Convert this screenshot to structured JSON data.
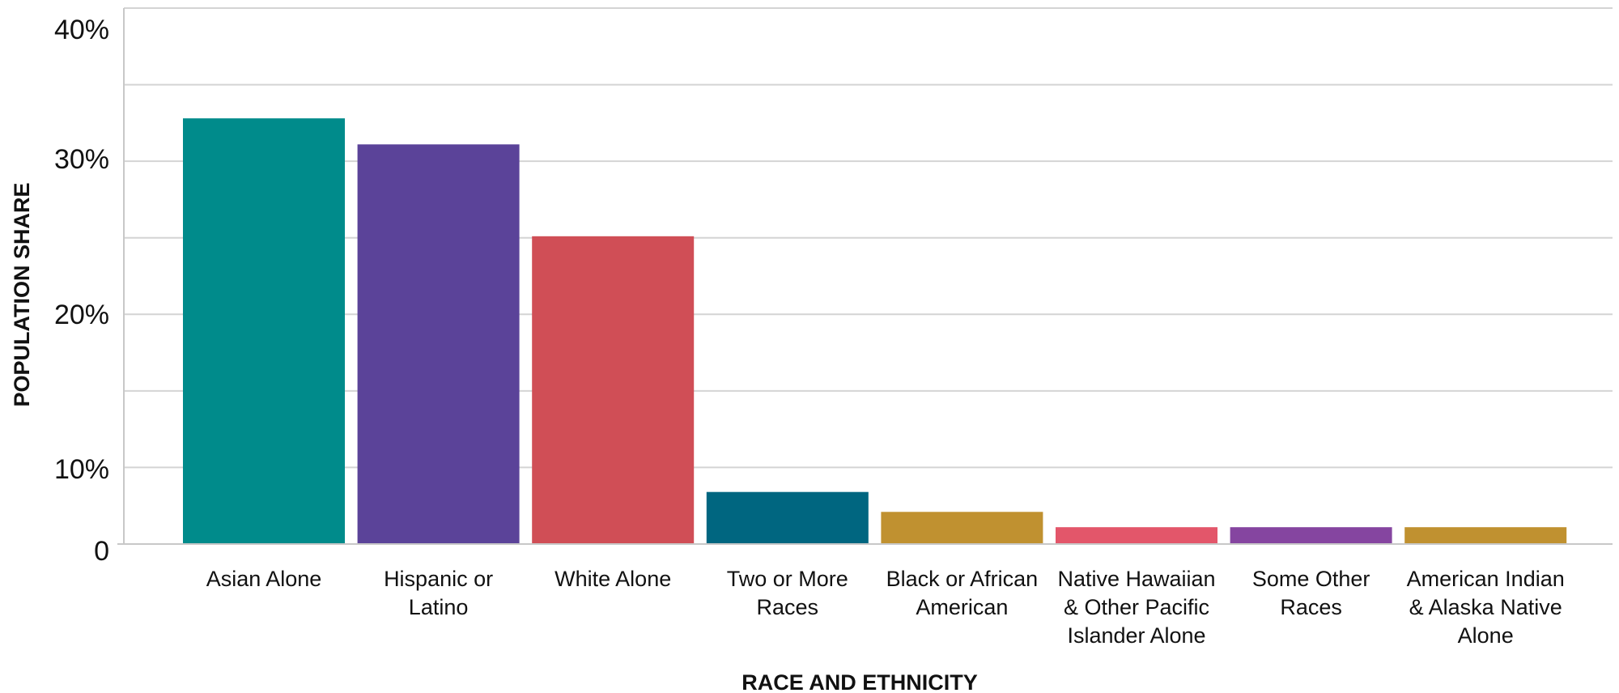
{
  "chart_data": {
    "type": "bar",
    "categories": [
      "Asian Alone",
      "Hispanic or Latino",
      "White Alone",
      "Two or More Races",
      "Black or African American",
      "Native Hawaiian & Other Pacific Islander Alone",
      "Some Other Races",
      "American Indian & Alaska Native Alone"
    ],
    "category_lines": [
      [
        "Asian Alone"
      ],
      [
        "Hispanic or",
        "Latino"
      ],
      [
        "White Alone"
      ],
      [
        "Two or More",
        "Races"
      ],
      [
        "Black or African",
        "American"
      ],
      [
        "Native Hawaiian",
        "& Other Pacific",
        "Islander Alone"
      ],
      [
        "Some Other",
        "Races"
      ],
      [
        "American Indian",
        "& Alaska Native",
        "Alone"
      ]
    ],
    "values": [
      27.8,
      26.1,
      20.1,
      3.4,
      2.1,
      1.1,
      1.1,
      1.1
    ],
    "colors": [
      "#008b8b",
      "#5b4399",
      "#d04e56",
      "#006680",
      "#c09130",
      "#e3566a",
      "#8545a0",
      "#c09130"
    ],
    "ylim": [
      0,
      35
    ],
    "yticks": [
      0,
      10,
      20,
      30,
      40
    ],
    "ytick_labels": [
      "0",
      "10%",
      "20%",
      "30%",
      "40%"
    ],
    "grid_values": [
      5,
      10,
      15,
      20,
      25,
      30,
      35
    ],
    "xlabel": "RACE AND ETHNICITY",
    "ylabel": "POPULATION SHARE"
  }
}
